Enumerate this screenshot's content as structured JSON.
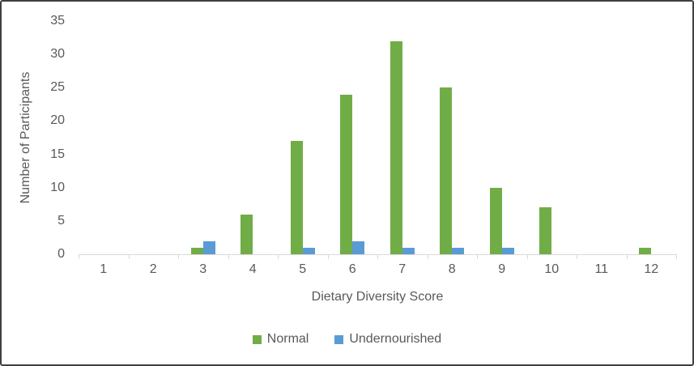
{
  "chart_data": {
    "type": "bar",
    "title": "",
    "categories": [
      "1",
      "2",
      "3",
      "4",
      "5",
      "6",
      "7",
      "8",
      "9",
      "10",
      "11",
      "12"
    ],
    "series": [
      {
        "name": "Normal",
        "color": "#70AD47",
        "values": [
          0,
          0,
          1,
          6,
          17,
          24,
          32,
          25,
          10,
          7,
          0,
          1
        ]
      },
      {
        "name": "Undernourished",
        "color": "#5B9BD5",
        "values": [
          0,
          0,
          2,
          0,
          1,
          2,
          1,
          1,
          1,
          0,
          0,
          0
        ]
      }
    ],
    "xlabel": "Dietary Diversity Score",
    "ylabel": "Number of Participants",
    "ylim": [
      0,
      35
    ],
    "ytick_step": 5,
    "yticks": [
      "0",
      "5",
      "10",
      "15",
      "20",
      "25",
      "30",
      "35"
    ],
    "grid": false,
    "legend_position": "bottom-center"
  },
  "colors": {
    "axis_line": "#d9d9d9",
    "text": "#595959",
    "frame_border": "#404040",
    "background": "#ffffff"
  }
}
